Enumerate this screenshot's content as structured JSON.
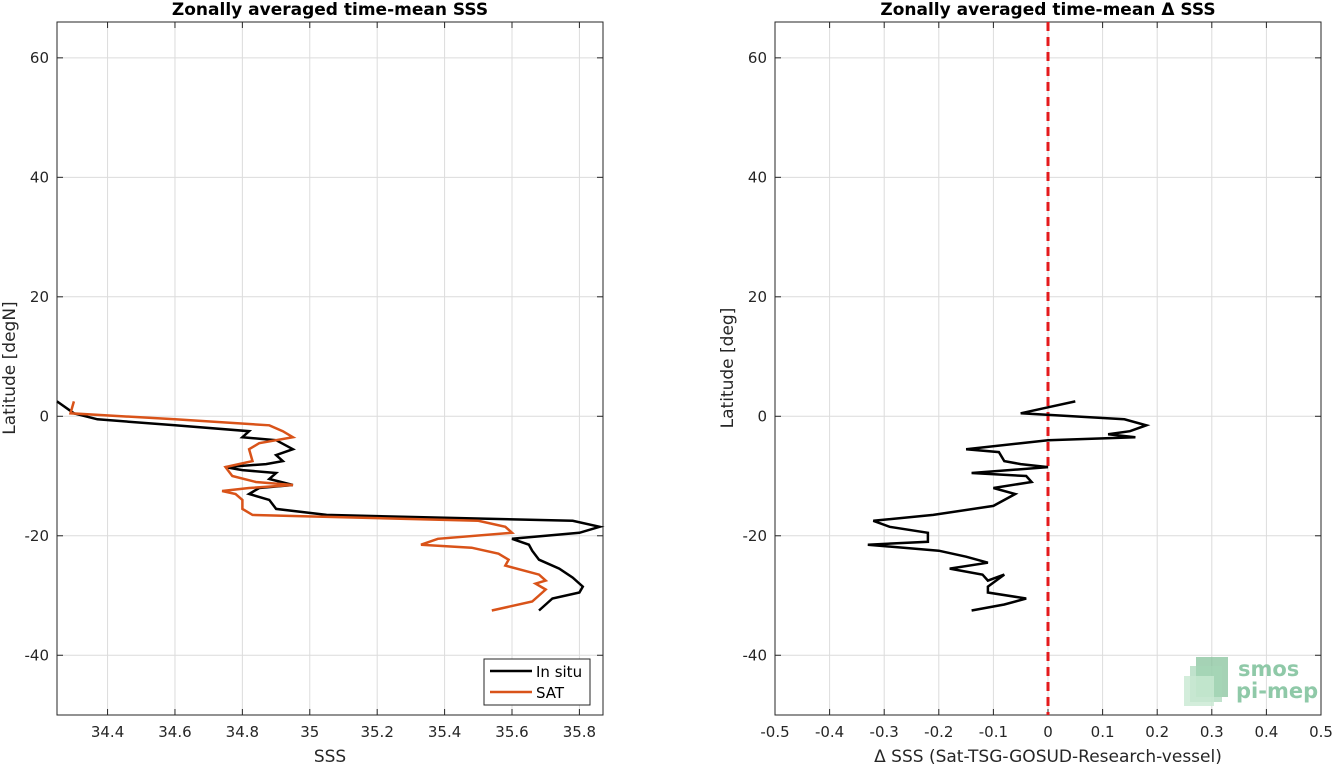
{
  "chart_data": [
    {
      "type": "line",
      "title": "Zonally averaged time-mean SSS",
      "xlabel": "SSS",
      "ylabel": "Latitude [degN]",
      "xlim": [
        34.25,
        35.87
      ],
      "ylim": [
        -50,
        66
      ],
      "xticks": [
        34.4,
        34.6,
        34.8,
        35,
        35.2,
        35.4,
        35.6,
        35.8
      ],
      "xtick_labels": [
        "34.4",
        "34.6",
        "34.8",
        "35",
        "35.2",
        "35.4",
        "35.6",
        "35.8"
      ],
      "yticks": [
        -40,
        -20,
        0,
        20,
        40,
        60
      ],
      "ytick_labels": [
        "-40",
        "-20",
        "0",
        "20",
        "40",
        "60"
      ],
      "grid": true,
      "legend": "bottom-right",
      "series": [
        {
          "name": "In situ",
          "color": "#000000",
          "points": [
            [
              34.25,
              2.5
            ],
            [
              34.3,
              0.5
            ],
            [
              34.37,
              -0.5
            ],
            [
              34.6,
              -1.5
            ],
            [
              34.82,
              -2.5
            ],
            [
              34.8,
              -3.5
            ],
            [
              34.9,
              -4
            ],
            [
              34.95,
              -5.5
            ],
            [
              34.9,
              -6.5
            ],
            [
              34.92,
              -7.5
            ],
            [
              34.87,
              -8
            ],
            [
              34.75,
              -8.5
            ],
            [
              34.8,
              -9
            ],
            [
              34.9,
              -9.5
            ],
            [
              34.88,
              -10.5
            ],
            [
              34.95,
              -11.5
            ],
            [
              34.85,
              -12
            ],
            [
              34.82,
              -13
            ],
            [
              34.88,
              -14
            ],
            [
              34.9,
              -15.5
            ],
            [
              35.05,
              -16.5
            ],
            [
              35.78,
              -17.5
            ],
            [
              35.86,
              -18.5
            ],
            [
              35.8,
              -19.5
            ],
            [
              35.6,
              -20.5
            ],
            [
              35.65,
              -21.5
            ],
            [
              35.66,
              -22.5
            ],
            [
              35.68,
              -24
            ],
            [
              35.74,
              -25.5
            ],
            [
              35.78,
              -27
            ],
            [
              35.81,
              -28.5
            ],
            [
              35.8,
              -29.5
            ],
            [
              35.72,
              -30.5
            ],
            [
              35.7,
              -31.5
            ],
            [
              35.68,
              -32.5
            ]
          ]
        },
        {
          "name": "SAT",
          "color": "#d95319",
          "points": [
            [
              34.3,
              2.5
            ],
            [
              34.29,
              0.5
            ],
            [
              34.6,
              -0.5
            ],
            [
              34.88,
              -1.5
            ],
            [
              34.92,
              -2.5
            ],
            [
              34.95,
              -3.5
            ],
            [
              34.85,
              -4.5
            ],
            [
              34.82,
              -5.5
            ],
            [
              34.83,
              -7.5
            ],
            [
              34.75,
              -8.5
            ],
            [
              34.77,
              -10
            ],
            [
              34.84,
              -11
            ],
            [
              34.95,
              -11.5
            ],
            [
              34.82,
              -12
            ],
            [
              34.74,
              -12.5
            ],
            [
              34.78,
              -13
            ],
            [
              34.8,
              -14
            ],
            [
              34.8,
              -15.5
            ],
            [
              34.83,
              -16.5
            ],
            [
              35.5,
              -17.5
            ],
            [
              35.58,
              -18.5
            ],
            [
              35.6,
              -19.5
            ],
            [
              35.38,
              -20.5
            ],
            [
              35.33,
              -21.5
            ],
            [
              35.48,
              -22
            ],
            [
              35.56,
              -23
            ],
            [
              35.59,
              -24
            ],
            [
              35.58,
              -25
            ],
            [
              35.68,
              -26.5
            ],
            [
              35.7,
              -27.5
            ],
            [
              35.67,
              -28
            ],
            [
              35.7,
              -29
            ],
            [
              35.68,
              -30
            ],
            [
              35.66,
              -31
            ],
            [
              35.54,
              -32.5
            ]
          ]
        }
      ]
    },
    {
      "type": "line",
      "title": "Zonally averaged time-mean Δ SSS",
      "xlabel": "Δ SSS (Sat-TSG-GOSUD-Research-vessel)",
      "ylabel": "Latitude [deg]",
      "xlim": [
        -0.5,
        0.5
      ],
      "ylim": [
        -50,
        66
      ],
      "xticks": [
        -0.5,
        -0.4,
        -0.3,
        -0.2,
        -0.1,
        0,
        0.1,
        0.2,
        0.3,
        0.4,
        0.5
      ],
      "xtick_labels": [
        "-0.5",
        "-0.4",
        "-0.3",
        "-0.2",
        "-0.1",
        "0",
        "0.1",
        "0.2",
        "0.3",
        "0.4",
        "0.5"
      ],
      "yticks": [
        -40,
        -20,
        0,
        20,
        40,
        60
      ],
      "ytick_labels": [
        "-40",
        "-20",
        "0",
        "20",
        "40",
        "60"
      ],
      "grid": true,
      "reference_line": {
        "x": 0,
        "color": "#e41a1c",
        "style": "dashed"
      },
      "series": [
        {
          "color": "#000000",
          "points": [
            [
              0.05,
              2.5
            ],
            [
              0,
              1.5
            ],
            [
              -0.05,
              0.5
            ],
            [
              0.14,
              -0.5
            ],
            [
              0.18,
              -1.5
            ],
            [
              0.15,
              -2.5
            ],
            [
              0.11,
              -3
            ],
            [
              0.16,
              -3.5
            ],
            [
              0,
              -4
            ],
            [
              -0.05,
              -4.5
            ],
            [
              -0.15,
              -5.5
            ],
            [
              -0.09,
              -6
            ],
            [
              -0.08,
              -7.5
            ],
            [
              -0.05,
              -8
            ],
            [
              0,
              -8.5
            ],
            [
              -0.14,
              -9.5
            ],
            [
              -0.04,
              -10
            ],
            [
              -0.03,
              -11
            ],
            [
              -0.1,
              -12
            ],
            [
              -0.06,
              -13
            ],
            [
              -0.1,
              -15
            ],
            [
              -0.21,
              -16.5
            ],
            [
              -0.32,
              -17.5
            ],
            [
              -0.29,
              -18.5
            ],
            [
              -0.22,
              -19.5
            ],
            [
              -0.22,
              -21
            ],
            [
              -0.33,
              -21.5
            ],
            [
              -0.2,
              -22.5
            ],
            [
              -0.15,
              -23.5
            ],
            [
              -0.11,
              -24.5
            ],
            [
              -0.18,
              -25.5
            ],
            [
              -0.12,
              -26.5
            ],
            [
              -0.11,
              -27.5
            ],
            [
              -0.08,
              -26.5
            ],
            [
              -0.11,
              -28.5
            ],
            [
              -0.11,
              -29.5
            ],
            [
              -0.04,
              -30.5
            ],
            [
              -0.08,
              -31.5
            ],
            [
              -0.14,
              -32.5
            ]
          ]
        }
      ]
    }
  ],
  "logo": {
    "line1": "smos",
    "line2": "pi-mep"
  }
}
